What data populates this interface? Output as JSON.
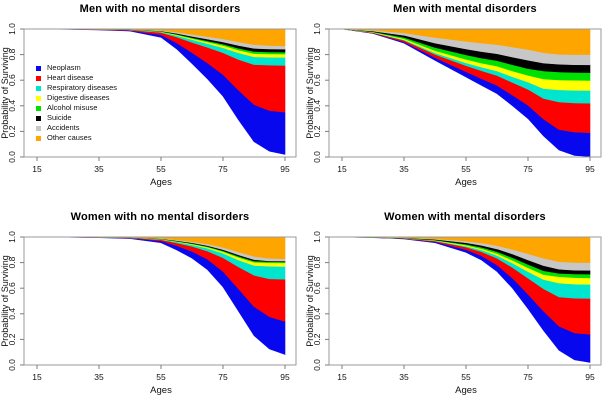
{
  "figure": {
    "background": "#FFFFFF",
    "xlabel": "Ages",
    "ylabel": "Probability of Surviving",
    "x_ticks": [
      15,
      35,
      55,
      75,
      95
    ],
    "y_ticks": [
      1.0,
      0.8,
      0.6,
      0.4,
      0.2,
      0.0
    ],
    "y_tick_labels": [
      "1.0",
      "0.8",
      "0.6",
      "0.4",
      "0.2",
      "0.0"
    ],
    "box_color": "#9a9a9a",
    "tick_color": "#7d7d7d",
    "text_color": "#111111"
  },
  "causes": [
    {
      "label": "Neoplasm",
      "color": "#0808EE"
    },
    {
      "label": "Heart disease",
      "color": "#FF0000"
    },
    {
      "label": "Respiratory diseases",
      "color": "#00E5CD"
    },
    {
      "label": "Digestive diseases",
      "color": "#FFFF00"
    },
    {
      "label": "Alcohol misuse",
      "color": "#00E000"
    },
    {
      "label": "Suicide",
      "color": "#000000"
    },
    {
      "label": "Accidents",
      "color": "#C7C7C7"
    },
    {
      "label": "Other causes",
      "color": "#FFA500"
    }
  ],
  "chart_data": [
    {
      "type": "area",
      "title": "Men with no mental disorders",
      "xlabel": "Ages",
      "ylabel": "Probability of Surviving",
      "xlim": [
        15,
        95
      ],
      "ylim": [
        0.0,
        1.0
      ],
      "legend": true,
      "legend_position": "left-middle",
      "ages": [
        15,
        25,
        35,
        45,
        55,
        60,
        65,
        70,
        75,
        80,
        85,
        90,
        95
      ],
      "survive": [
        1.0,
        0.997,
        0.993,
        0.984,
        0.935,
        0.845,
        0.73,
        0.61,
        0.475,
        0.29,
        0.12,
        0.045,
        0.02
      ],
      "tops": [
        [
          1.0,
          0.998,
          0.995,
          0.989,
          0.955,
          0.893,
          0.815,
          0.734,
          0.644,
          0.522,
          0.41,
          0.363,
          0.35
        ],
        [
          1.0,
          0.9986,
          0.997,
          0.993,
          0.973,
          0.938,
          0.896,
          0.857,
          0.815,
          0.762,
          0.722,
          0.718,
          0.715
        ],
        [
          1.0,
          0.9989,
          0.9974,
          0.994,
          0.978,
          0.95,
          0.917,
          0.886,
          0.854,
          0.814,
          0.783,
          0.78,
          0.779
        ],
        [
          1.0,
          0.999,
          0.998,
          0.995,
          0.98,
          0.955,
          0.926,
          0.899,
          0.871,
          0.835,
          0.808,
          0.805,
          0.804
        ],
        [
          1.0,
          0.9991,
          0.9981,
          0.9952,
          0.982,
          0.959,
          0.933,
          0.908,
          0.882,
          0.85,
          0.825,
          0.821,
          0.82
        ],
        [
          1.0,
          0.9993,
          0.9983,
          0.996,
          0.985,
          0.966,
          0.943,
          0.921,
          0.899,
          0.871,
          0.849,
          0.844,
          0.843
        ],
        [
          1.0,
          0.9995,
          0.9988,
          0.997,
          0.99,
          0.976,
          0.958,
          0.941,
          0.923,
          0.899,
          0.878,
          0.871,
          0.868
        ]
      ]
    },
    {
      "type": "area",
      "title": "Men with mental disorders",
      "xlabel": "Ages",
      "ylabel": "Probability of Surviving",
      "xlim": [
        15,
        95
      ],
      "ylim": [
        0.0,
        1.0
      ],
      "legend": false,
      "ages": [
        15,
        25,
        35,
        45,
        55,
        60,
        65,
        70,
        75,
        80,
        85,
        90,
        95
      ],
      "survive": [
        1.0,
        0.965,
        0.89,
        0.755,
        0.625,
        0.56,
        0.495,
        0.4,
        0.3,
        0.165,
        0.055,
        0.012,
        0.004
      ],
      "tops": [
        [
          1.0,
          0.968,
          0.9,
          0.777,
          0.666,
          0.612,
          0.56,
          0.483,
          0.404,
          0.297,
          0.214,
          0.195,
          0.19
        ],
        [
          1.0,
          0.972,
          0.911,
          0.802,
          0.714,
          0.674,
          0.637,
          0.582,
          0.529,
          0.457,
          0.43,
          0.422,
          0.42
        ],
        [
          1.0,
          0.973,
          0.916,
          0.814,
          0.736,
          0.702,
          0.672,
          0.627,
          0.585,
          0.535,
          0.525,
          0.521,
          0.52
        ],
        [
          1.0,
          0.976,
          0.924,
          0.831,
          0.763,
          0.734,
          0.71,
          0.672,
          0.638,
          0.61,
          0.602,
          0.6,
          0.598
        ],
        [
          1.0,
          0.979,
          0.935,
          0.856,
          0.798,
          0.773,
          0.753,
          0.721,
          0.691,
          0.672,
          0.664,
          0.661,
          0.66
        ],
        [
          1.0,
          0.984,
          0.951,
          0.89,
          0.844,
          0.824,
          0.807,
          0.781,
          0.756,
          0.734,
          0.725,
          0.721,
          0.72
        ],
        [
          1.0,
          0.991,
          0.97,
          0.934,
          0.904,
          0.89,
          0.878,
          0.859,
          0.84,
          0.815,
          0.802,
          0.8,
          0.8
        ]
      ]
    },
    {
      "type": "area",
      "title": "Women with no mental disorders",
      "xlabel": "Ages",
      "ylabel": "Probability of Surviving",
      "xlim": [
        15,
        95
      ],
      "ylim": [
        0.0,
        1.0
      ],
      "legend": false,
      "ages": [
        15,
        25,
        35,
        45,
        55,
        60,
        65,
        70,
        75,
        80,
        85,
        90,
        95
      ],
      "survive": [
        1.0,
        0.998,
        0.995,
        0.988,
        0.955,
        0.9,
        0.835,
        0.745,
        0.61,
        0.42,
        0.23,
        0.125,
        0.082
      ],
      "tops": [
        [
          1.0,
          0.9987,
          0.9968,
          0.992,
          0.97,
          0.933,
          0.888,
          0.826,
          0.731,
          0.595,
          0.457,
          0.377,
          0.34
        ],
        [
          1.0,
          0.999,
          0.9975,
          0.994,
          0.979,
          0.954,
          0.927,
          0.89,
          0.838,
          0.767,
          0.701,
          0.673,
          0.67
        ],
        [
          1.0,
          0.9991,
          0.9978,
          0.9947,
          0.982,
          0.962,
          0.94,
          0.912,
          0.873,
          0.821,
          0.778,
          0.772,
          0.77
        ],
        [
          1.0,
          0.9992,
          0.998,
          0.995,
          0.984,
          0.965,
          0.946,
          0.921,
          0.886,
          0.841,
          0.803,
          0.799,
          0.798
        ],
        [
          1.0,
          0.9993,
          0.9982,
          0.9956,
          0.985,
          0.968,
          0.95,
          0.926,
          0.893,
          0.85,
          0.813,
          0.808,
          0.806
        ],
        [
          1.0,
          0.9994,
          0.9984,
          0.996,
          0.987,
          0.972,
          0.955,
          0.933,
          0.902,
          0.861,
          0.824,
          0.813,
          0.812
        ],
        [
          1.0,
          0.9995,
          0.9988,
          0.997,
          0.99,
          0.978,
          0.964,
          0.946,
          0.919,
          0.883,
          0.849,
          0.833,
          0.83
        ]
      ]
    },
    {
      "type": "area",
      "title": "Women with mental disorders",
      "xlabel": "Ages",
      "ylabel": "Probability of Surviving",
      "xlim": [
        15,
        95
      ],
      "ylim": [
        0.0,
        1.0
      ],
      "legend": false,
      "ages": [
        15,
        25,
        35,
        45,
        55,
        60,
        65,
        70,
        75,
        80,
        85,
        90,
        95
      ],
      "survive": [
        1.0,
        0.995,
        0.985,
        0.955,
        0.88,
        0.82,
        0.73,
        0.6,
        0.44,
        0.27,
        0.115,
        0.04,
        0.02
      ],
      "tops": [
        [
          1.0,
          0.996,
          0.988,
          0.963,
          0.902,
          0.854,
          0.782,
          0.679,
          0.553,
          0.422,
          0.304,
          0.25,
          0.24
        ],
        [
          1.0,
          0.9965,
          0.9895,
          0.969,
          0.921,
          0.885,
          0.834,
          0.762,
          0.679,
          0.596,
          0.532,
          0.522,
          0.52
        ],
        [
          1.0,
          0.9968,
          0.99,
          0.971,
          0.929,
          0.899,
          0.856,
          0.796,
          0.73,
          0.668,
          0.64,
          0.632,
          0.63
        ],
        [
          1.0,
          0.9971,
          0.991,
          0.974,
          0.937,
          0.909,
          0.871,
          0.819,
          0.76,
          0.706,
          0.69,
          0.683,
          0.68
        ],
        [
          1.0,
          0.9975,
          0.992,
          0.977,
          0.944,
          0.92,
          0.886,
          0.839,
          0.786,
          0.737,
          0.716,
          0.711,
          0.71
        ],
        [
          1.0,
          0.998,
          0.994,
          0.982,
          0.955,
          0.935,
          0.907,
          0.867,
          0.821,
          0.777,
          0.748,
          0.741,
          0.74
        ],
        [
          1.0,
          0.9986,
          0.9958,
          0.987,
          0.968,
          0.954,
          0.933,
          0.903,
          0.869,
          0.834,
          0.808,
          0.801,
          0.8
        ]
      ]
    }
  ]
}
